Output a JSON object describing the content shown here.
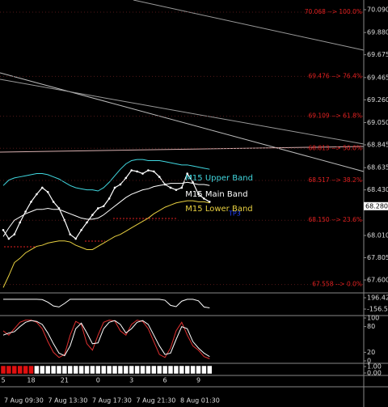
{
  "chart_data": [
    {
      "type": "line",
      "categories": [
        "5",
        null,
        null,
        null,
        null,
        "18",
        null,
        null,
        null,
        null,
        null,
        "21",
        null,
        null,
        null,
        null,
        null,
        "0",
        null,
        null,
        null,
        null,
        null,
        "3",
        null,
        null,
        null,
        null,
        null,
        "6",
        null,
        null,
        null,
        null,
        null,
        "9",
        null,
        null
      ],
      "ylim": [
        67.6,
        70.09
      ],
      "yticks": [
        {
          "value": 70.09,
          "label": "70.090"
        },
        {
          "value": 69.88,
          "label": "69.880"
        },
        69.675,
        69.465,
        {
          "value": 69.26,
          "label": "69.260"
        },
        {
          "value": 69.05,
          "label": "69.050"
        },
        68.845,
        68.635,
        {
          "value": 68.43,
          "label": "68.430"
        },
        {
          "value": 68.01,
          "label": "68.010"
        },
        67.805,
        {
          "value": 67.6,
          "label": "67.600"
        }
      ],
      "series": [
        {
          "color": "#ffffff",
          "values": [
            68.06,
            67.98,
            68.02,
            68.13,
            68.23,
            68.32,
            68.39,
            68.45,
            68.41,
            68.32,
            68.26,
            68.15,
            68.02,
            67.98,
            68.06,
            68.13,
            68.2,
            68.26,
            68.28,
            68.35,
            68.45,
            68.48,
            68.54,
            68.61,
            68.6,
            68.58,
            68.61,
            68.6,
            68.55,
            68.48,
            68.45,
            68.43,
            68.45,
            68.58,
            68.5,
            68.39,
            68.35,
            68.32
          ]
        },
        {
          "name": "M15 Upper Band",
          "color": "#40d8e0",
          "values": [
            68.47,
            68.52,
            68.54,
            68.55,
            68.56,
            68.57,
            68.58,
            68.58,
            68.57,
            68.55,
            68.53,
            68.5,
            68.47,
            68.45,
            68.44,
            68.43,
            68.43,
            68.42,
            68.45,
            68.5,
            68.56,
            68.62,
            68.67,
            68.7,
            68.71,
            68.71,
            68.7,
            68.7,
            68.7,
            68.69,
            68.68,
            68.67,
            68.66,
            68.66,
            68.65,
            68.64,
            68.63,
            68.62
          ]
        },
        {
          "name": "M15 Main Band",
          "color": "#ffffff",
          "values": [
            68.0,
            68.08,
            68.15,
            68.18,
            68.21,
            68.23,
            68.25,
            68.25,
            68.26,
            68.25,
            68.25,
            68.23,
            68.21,
            68.19,
            68.17,
            68.16,
            68.16,
            68.17,
            68.2,
            68.24,
            68.28,
            68.32,
            68.36,
            68.39,
            68.41,
            68.43,
            68.44,
            68.46,
            68.47,
            68.48,
            68.49,
            68.49,
            68.49,
            68.5,
            68.49,
            68.48,
            68.48,
            68.47
          ]
        },
        {
          "name": "M15 Lower Band",
          "color": "#e8d040",
          "values": [
            67.53,
            67.64,
            67.76,
            67.8,
            67.85,
            67.88,
            67.91,
            67.92,
            67.94,
            67.95,
            67.96,
            67.96,
            67.95,
            67.92,
            67.9,
            67.88,
            67.88,
            67.91,
            67.94,
            67.97,
            68.0,
            68.02,
            68.05,
            68.08,
            68.11,
            68.14,
            68.17,
            68.21,
            68.24,
            68.27,
            68.29,
            68.31,
            68.32,
            68.33,
            68.33,
            68.32,
            68.32,
            68.31
          ]
        }
      ],
      "levels": [
        {
          "value": 70.068,
          "label": "70.068 --> 100.0%"
        },
        {
          "value": 69.476,
          "label": "69.476 --> 76.4%"
        },
        {
          "value": 69.109,
          "label": "69.109 --> 61.8%"
        },
        {
          "value": 68.813,
          "label": "68.813 --> 50.0%"
        },
        {
          "value": 68.517,
          "label": "68.517 --> 38.2%"
        },
        {
          "value": 68.15,
          "label": "68.150 --> 23.6%"
        },
        {
          "value": 67.558,
          "label": "67.558 --> 0.0%"
        }
      ],
      "current_price": {
        "value": 68.28,
        "label": "68.280"
      },
      "annotation": "TP3"
    },
    {
      "type": "line",
      "ylim": [
        -156.54,
        196.429
      ],
      "yticks": [
        196.429,
        -156.54
      ],
      "series": [
        {
          "color": "#ffffff",
          "values": [
            150,
            150,
            150,
            150,
            150,
            150,
            150,
            140,
            60,
            -60,
            -90,
            20,
            150,
            150,
            150,
            150,
            150,
            150,
            150,
            150,
            150,
            150,
            150,
            150,
            150,
            150,
            150,
            150,
            150,
            120,
            -40,
            -80,
            90,
            150,
            150,
            100,
            -90,
            -120
          ]
        }
      ]
    },
    {
      "type": "line",
      "ylim": [
        0,
        100
      ],
      "yticks": [
        100,
        80,
        20,
        0
      ],
      "series": [
        {
          "color": "#e03030",
          "values": [
            70,
            60,
            75,
            90,
            95,
            95,
            90,
            75,
            45,
            20,
            8,
            15,
            60,
            92,
            85,
            40,
            25,
            60,
            90,
            95,
            93,
            70,
            60,
            85,
            95,
            92,
            75,
            45,
            15,
            8,
            30,
            70,
            90,
            60,
            35,
            25,
            10,
            5
          ]
        },
        {
          "color": "#ffffff",
          "values": [
            60,
            65,
            68,
            80,
            90,
            94,
            92,
            85,
            65,
            40,
            18,
            12,
            35,
            75,
            88,
            65,
            40,
            42,
            75,
            90,
            94,
            85,
            65,
            75,
            90,
            94,
            85,
            60,
            35,
            15,
            18,
            50,
            80,
            75,
            45,
            30,
            18,
            10
          ]
        }
      ]
    },
    {
      "type": "blocks",
      "ylim": [
        0,
        1
      ],
      "yticks": [
        {
          "value": 1,
          "label": "1.00"
        },
        {
          "value": 0,
          "label": "0.00"
        }
      ],
      "x_labels": [
        "7 Aug 09:30",
        "7 Aug 13:30",
        "7 Aug 17:30",
        "7 Aug 21:30",
        "8 Aug 01:30"
      ]
    }
  ]
}
